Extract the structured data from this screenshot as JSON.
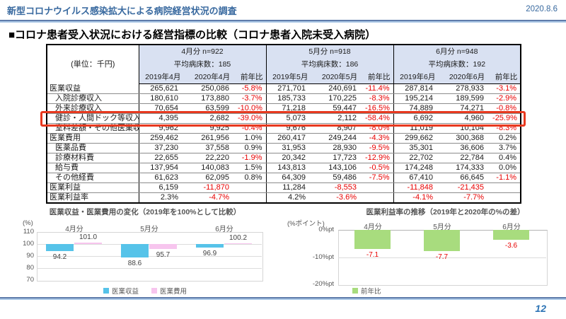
{
  "page": {
    "title": "新型コロナウイルス感染拡大による病院経営状況の調査",
    "date": "2020.8.6",
    "section_heading": "■コロナ患者受入状況における経営指標の比較（コロナ患者入院未受入病院）",
    "page_number": "12",
    "accent_blue": "#38699f",
    "negative_red": "#e80000",
    "highlight_red": "#e8391f",
    "header_bg": "#d9e1f2"
  },
  "table": {
    "unit_label": "(単位：千円)",
    "groups": [
      {
        "period": "4月分 n=922",
        "beds": "平均病床数：185",
        "cols": [
          "2019年4月",
          "2020年4月",
          "前年比"
        ]
      },
      {
        "period": "5月分 n=918",
        "beds": "平均病床数：186",
        "cols": [
          "2019年5月",
          "2020年5月",
          "前年比"
        ]
      },
      {
        "period": "6月分 n=948",
        "beds": "平均病床数：192",
        "cols": [
          "2019年6月",
          "2020年6月",
          "前年比"
        ]
      }
    ],
    "rows": [
      {
        "label": "医業収益",
        "sub": false,
        "section": false,
        "highlight": false,
        "cells": [
          "265,621",
          "250,086",
          "-5.8%",
          "271,701",
          "240,691",
          "-11.4%",
          "287,814",
          "278,933",
          "-3.1%"
        ]
      },
      {
        "label": "入院診療収入",
        "sub": true,
        "section": false,
        "highlight": false,
        "cells": [
          "180,610",
          "173,880",
          "-3.7%",
          "185,733",
          "170,225",
          "-8.3%",
          "195,214",
          "189,599",
          "-2.9%"
        ]
      },
      {
        "label": "外来診療収入",
        "sub": true,
        "section": false,
        "highlight": false,
        "cells": [
          "70,654",
          "63,599",
          "-10.0%",
          "71,218",
          "59,447",
          "-16.5%",
          "74,889",
          "74,271",
          "-0.8%"
        ]
      },
      {
        "label": "健診・人間ドック等収入",
        "sub": true,
        "section": false,
        "highlight": true,
        "cells": [
          "4,395",
          "2,682",
          "-39.0%",
          "5,073",
          "2,112",
          "-58.4%",
          "6,692",
          "4,960",
          "-25.9%"
        ]
      },
      {
        "label": "室料差額・その他医業収入",
        "sub": true,
        "section": false,
        "highlight": false,
        "cells": [
          "9,962",
          "9,925",
          "-0.4%",
          "9,676",
          "8,907",
          "-8.0%",
          "11,019",
          "10,104",
          "-8.3%"
        ]
      },
      {
        "label": "医業費用",
        "sub": false,
        "section": true,
        "highlight": false,
        "cells": [
          "259,462",
          "261,956",
          "1.0%",
          "260,417",
          "249,244",
          "-4.3%",
          "299,662",
          "300,368",
          "0.2%"
        ]
      },
      {
        "label": "医薬品費",
        "sub": true,
        "section": false,
        "highlight": false,
        "cells": [
          "37,230",
          "37,558",
          "0.9%",
          "31,953",
          "28,930",
          "-9.5%",
          "35,301",
          "36,606",
          "3.7%"
        ]
      },
      {
        "label": "診療材料費",
        "sub": true,
        "section": false,
        "highlight": false,
        "cells": [
          "22,655",
          "22,220",
          "-1.9%",
          "20,342",
          "17,723",
          "-12.9%",
          "22,702",
          "22,784",
          "0.4%"
        ]
      },
      {
        "label": "給与費",
        "sub": true,
        "section": false,
        "highlight": false,
        "cells": [
          "137,954",
          "140,083",
          "1.5%",
          "143,813",
          "143,106",
          "-0.5%",
          "174,248",
          "174,333",
          "0.0%"
        ]
      },
      {
        "label": "その他経費",
        "sub": true,
        "section": false,
        "highlight": false,
        "cells": [
          "61,623",
          "62,095",
          "0.8%",
          "64,309",
          "59,486",
          "-7.5%",
          "67,410",
          "66,645",
          "-1.1%"
        ]
      },
      {
        "label": "医業利益",
        "sub": false,
        "section": true,
        "highlight": false,
        "cells": [
          "6,159",
          "-11,870",
          "",
          "11,284",
          "-8,553",
          "",
          "-11,848",
          "-21,435",
          ""
        ]
      },
      {
        "label": "医業利益率",
        "sub": false,
        "section": true,
        "highlight": false,
        "cells": [
          "2.3%",
          "-4.7%",
          "",
          "4.2%",
          "-3.6%",
          "",
          "-4.1%",
          "-7.7%",
          ""
        ]
      }
    ]
  },
  "chart_data": [
    {
      "type": "bar",
      "title": "医業収益・医業費用の変化（2019年を100%として比較）",
      "ylabel": "(%)",
      "categories": [
        "4月分",
        "5月分",
        "6月分"
      ],
      "series": [
        {
          "name": "医業収益",
          "color": "#56c3e9",
          "values": [
            94.2,
            88.6,
            96.9
          ]
        },
        {
          "name": "医業費用",
          "color": "#f7c5ee",
          "values": [
            101.0,
            95.7,
            100.2
          ]
        }
      ],
      "baseline": 100,
      "ylim": [
        70,
        110
      ],
      "ytick_vals": [
        110,
        100,
        90,
        80,
        70
      ],
      "ytick_labels": [
        "110",
        "100",
        "90",
        "80",
        "70"
      ],
      "grid": true,
      "legend_position": "bottom-center",
      "label_color": "#3f3f3f"
    },
    {
      "type": "bar",
      "title": "医業利益率の推移（2019年と2020年の%の差）",
      "ylabel": "(%ポイント)",
      "categories": [
        "4月分",
        "5月分",
        "6月分"
      ],
      "series": [
        {
          "name": "前年比",
          "color": "#a8dc7e",
          "values": [
            -7.1,
            -7.7,
            -3.6
          ]
        }
      ],
      "baseline": 0,
      "ylim": [
        -20,
        0
      ],
      "ytick_vals": [
        0,
        -10,
        -20
      ],
      "ytick_labels": [
        "0%pt",
        "-10%pt",
        "-20%pt"
      ],
      "grid": true,
      "legend_position": "bottom-left",
      "label_color": "#e80000"
    }
  ]
}
